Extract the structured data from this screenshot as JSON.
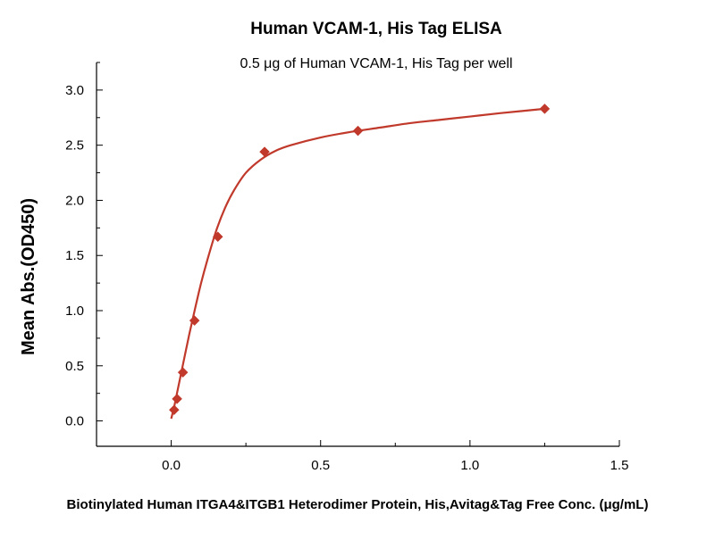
{
  "chart_data": {
    "type": "scatter",
    "title": "Human VCAM-1, His Tag ELISA",
    "subtitle": "0.5 μg of Human VCAM-1, His Tag per well",
    "xlabel": "Biotinylated Human ITGA4&ITGB1 Heterodimer Protein, His,Avitag&Tag Free Conc. (μg/mL)",
    "ylabel": "Mean Abs.(OD450)",
    "xlim": [
      -0.25,
      1.5
    ],
    "ylim": [
      -0.23,
      3.25
    ],
    "x_ticks": [
      0.0,
      0.5,
      1.0,
      1.5
    ],
    "x_tick_labels": [
      "0.0",
      "0.5",
      "1.0",
      "1.5"
    ],
    "y_ticks": [
      0.0,
      0.5,
      1.0,
      1.5,
      2.0,
      2.5,
      3.0
    ],
    "y_tick_labels": [
      "0.0",
      "0.5",
      "1.0",
      "1.5",
      "2.0",
      "2.5",
      "3.0"
    ],
    "grid": false,
    "legend": "none",
    "series": [
      {
        "marker": "diamond",
        "color": "#C0392B",
        "x": [
          0.0098,
          0.0195,
          0.039,
          0.078,
          0.156,
          0.3125,
          0.625,
          1.25
        ],
        "y": [
          0.1,
          0.2,
          0.44,
          0.91,
          1.67,
          2.44,
          2.63,
          2.83
        ]
      }
    ],
    "fit_curve": {
      "color": "#C0392B",
      "x": [
        0.0,
        0.01,
        0.02,
        0.04,
        0.06,
        0.08,
        0.1,
        0.12,
        0.15,
        0.18,
        0.21,
        0.25,
        0.3,
        0.35,
        0.4,
        0.5,
        0.6,
        0.7,
        0.8,
        0.9,
        1.0,
        1.1,
        1.25
      ],
      "y": [
        0.02,
        0.13,
        0.26,
        0.52,
        0.78,
        1.02,
        1.25,
        1.45,
        1.72,
        1.93,
        2.09,
        2.25,
        2.37,
        2.45,
        2.5,
        2.57,
        2.62,
        2.66,
        2.7,
        2.73,
        2.76,
        2.79,
        2.83
      ]
    }
  }
}
